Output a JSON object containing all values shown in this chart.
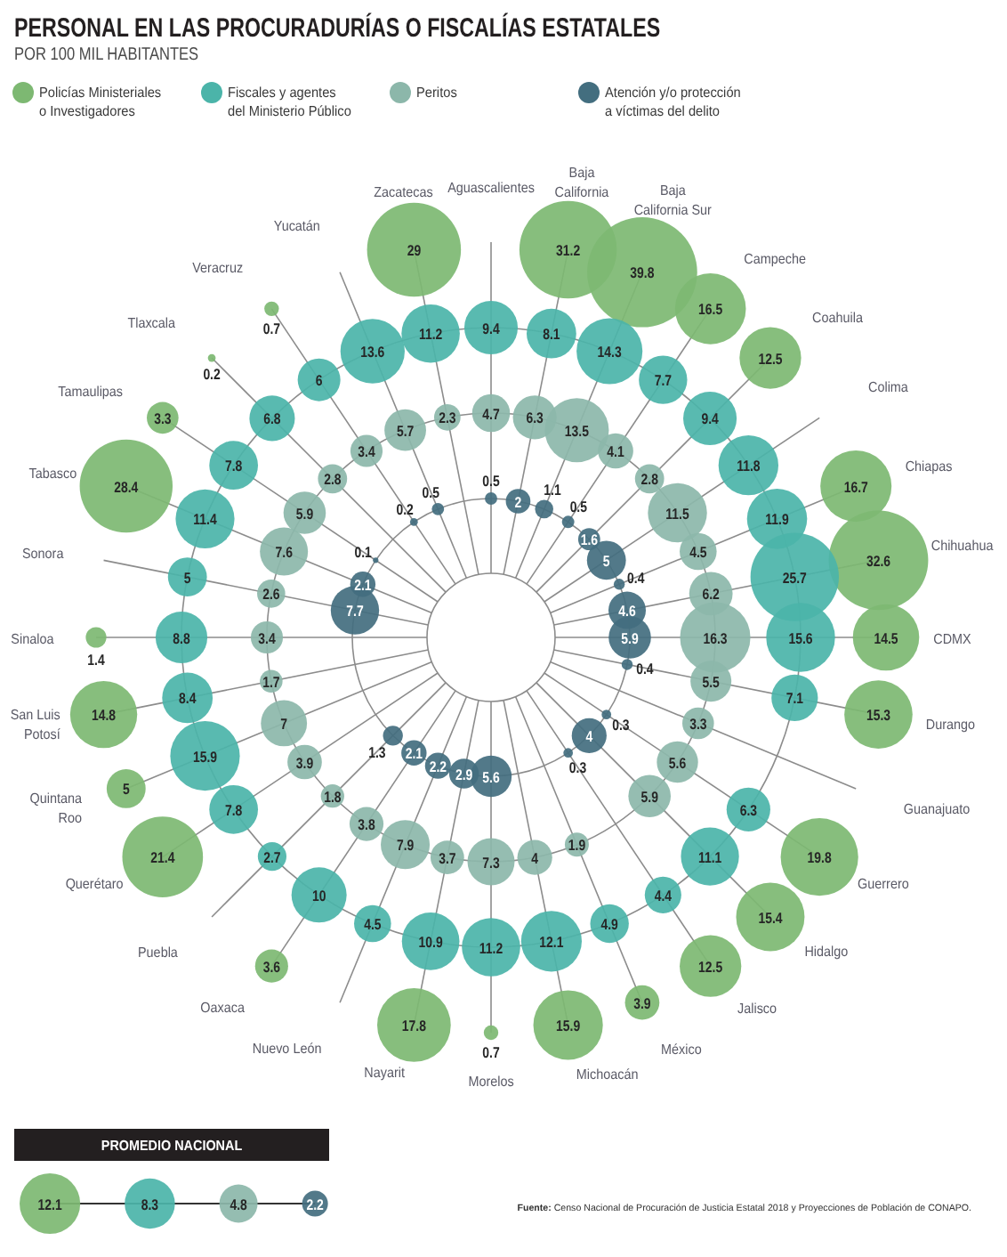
{
  "chart_data": [
    {
      "type": "other",
      "title": "PERSONAL EN LAS PROCURADURÍAS O FISCALÍAS ESTATALES",
      "subtitle": "POR 100 MIL HABITANTES",
      "categories": [
        "Aguascalientes",
        "Baja California",
        "Baja California Sur",
        "Campeche",
        "Coahuila",
        "Colima",
        "Chiapas",
        "Chihuahua",
        "CDMX",
        "Durango",
        "Guanajuato",
        "Guerrero",
        "Hidalgo",
        "Jalisco",
        "México",
        "Michoacán",
        "Morelos",
        "Nayarit",
        "Nuevo León",
        "Oaxaca",
        "Puebla",
        "Querétaro",
        "Quintana Roo",
        "San Luis Potosí",
        "Sinaloa",
        "Sonora",
        "Tabasco",
        "Tamaulipas",
        "Tlaxcala",
        "Veracruz",
        "Yucatán",
        "Zacatecas"
      ],
      "series": [
        {
          "name": "Policías Ministeriales o Investigadores",
          "color": "#7db872",
          "values": [
            null,
            31.2,
            39.8,
            16.5,
            12.5,
            null,
            16.7,
            32.6,
            14.5,
            15.3,
            null,
            19.8,
            15.4,
            12.5,
            3.9,
            15.9,
            0.7,
            17.8,
            null,
            3.6,
            null,
            21.4,
            5,
            14.8,
            1.4,
            null,
            28.4,
            3.3,
            0.2,
            0.7,
            null,
            29
          ]
        },
        {
          "name": "Fiscales y agentes del Ministerio Público",
          "color": "#4bb4a9",
          "values": [
            9.4,
            8.1,
            14.3,
            7.7,
            9.4,
            11.8,
            11.9,
            25.7,
            15.6,
            7.1,
            null,
            6.3,
            11.1,
            4.4,
            4.9,
            12.1,
            11.2,
            10.9,
            4.5,
            10,
            2.7,
            7.8,
            15.9,
            8.4,
            8.8,
            5,
            11.4,
            7.8,
            6.8,
            6,
            13.6,
            11.2
          ]
        },
        {
          "name": "Peritos",
          "color": "#8cb7aa",
          "values": [
            4.7,
            6.3,
            13.5,
            4.1,
            2.8,
            11.5,
            4.5,
            6.2,
            16.3,
            5.5,
            3.3,
            5.6,
            5.9,
            null,
            1.9,
            4,
            7.3,
            3.7,
            7.9,
            3.8,
            1.8,
            3.9,
            7,
            1.7,
            3.4,
            2.6,
            7.6,
            5.9,
            2.8,
            3.4,
            5.7,
            2.3
          ]
        },
        {
          "name": "Atención y/o protección a víctimas del delito",
          "color": "#436e7f",
          "values": [
            0.5,
            2,
            1.1,
            0.5,
            1.6,
            5,
            0.4,
            4.6,
            5.9,
            0.4,
            null,
            0.3,
            4,
            0.3,
            null,
            null,
            5.6,
            2.9,
            2.2,
            2.1,
            1.3,
            null,
            null,
            null,
            null,
            7.7,
            2.1,
            0.1,
            null,
            0.2,
            0.5,
            null
          ]
        }
      ],
      "legend": "top",
      "data_labels": true,
      "annotations": [
        "Fuente: Censo Nacional de Procuración de Justicia Estatal 2018 y Proyecciones de Población de CONAPO."
      ]
    },
    {
      "type": "other",
      "title": "PROMEDIO NACIONAL",
      "categories": [
        null,
        null,
        null,
        null
      ],
      "values": [
        12.1,
        8.3,
        4.8,
        2.2
      ],
      "colors": [
        "#7db872",
        "#4bb4a9",
        "#8cb7aa",
        "#436e7f"
      ],
      "data_labels": true
    }
  ]
}
